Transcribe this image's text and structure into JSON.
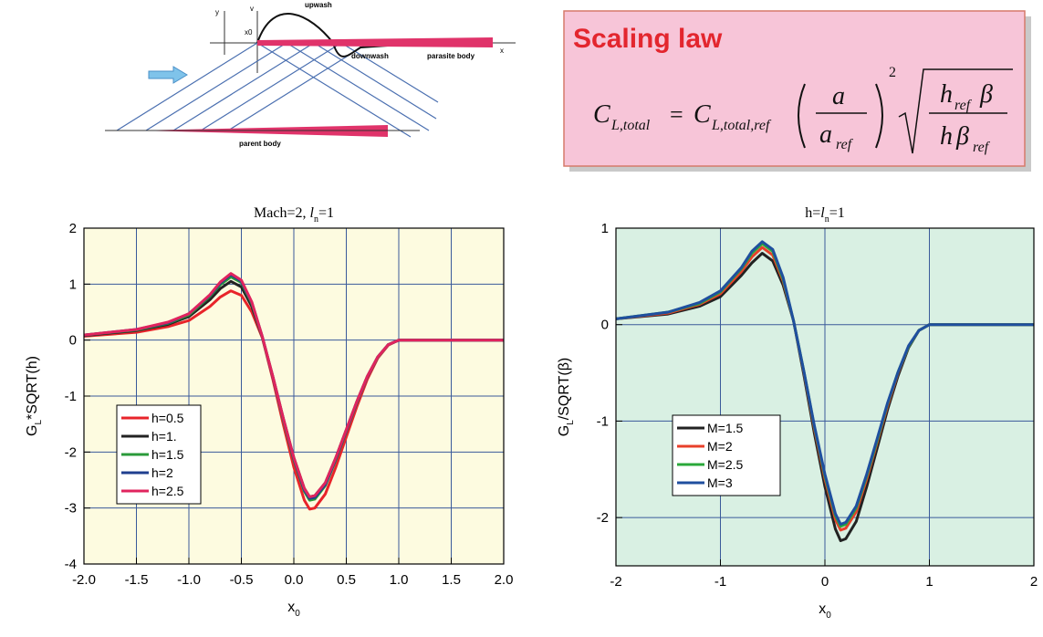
{
  "diagram": {
    "y_axis": "y",
    "v_axis": "v",
    "x0": "x0",
    "upwash": "upwash",
    "downwash": "downwash",
    "parasite_body": "parasite body",
    "x_axis": "x",
    "parent_body": "parent body"
  },
  "scaling_law": {
    "title": "Scaling law",
    "formula": [
      "C",
      "L,total",
      "=",
      "C",
      "L,total,ref",
      "a",
      "a",
      "ref",
      "2",
      "h",
      "ref",
      "β",
      "h",
      "β",
      "ref"
    ]
  },
  "chart_data": [
    {
      "type": "line",
      "title": [
        "Mach=2, ",
        "l",
        "n",
        "=1"
      ],
      "x_label": [
        "x",
        "0"
      ],
      "y_label": [
        "G",
        "L",
        "*SQRT(h)"
      ],
      "x": [
        -2,
        -1.5,
        -1.2,
        -1,
        -0.8,
        -0.7,
        -0.6,
        -0.5,
        -0.4,
        -0.3,
        -0.2,
        -0.1,
        0,
        0.1,
        0.15,
        0.2,
        0.3,
        0.4,
        0.5,
        0.6,
        0.7,
        0.8,
        0.9,
        1,
        1.5,
        2
      ],
      "series": [
        {
          "name": "h=0.5",
          "color": "#e8242a",
          "values": [
            0.07,
            0.14,
            0.24,
            0.35,
            0.6,
            0.77,
            0.88,
            0.8,
            0.5,
            0.04,
            -0.7,
            -1.51,
            -2.27,
            -2.86,
            -3.02,
            -3.0,
            -2.75,
            -2.27,
            -1.73,
            -1.19,
            -0.7,
            -0.32,
            -0.09,
            0,
            0,
            0
          ]
        },
        {
          "name": "h=1.",
          "color": "#222222",
          "values": [
            0.08,
            0.17,
            0.28,
            0.42,
            0.72,
            0.92,
            1.05,
            0.95,
            0.6,
            0.05,
            -0.65,
            -1.4,
            -2.1,
            -2.65,
            -2.8,
            -2.78,
            -2.55,
            -2.1,
            -1.6,
            -1.1,
            -0.65,
            -0.3,
            -0.08,
            0,
            0,
            0
          ]
        },
        {
          "name": "h=1.5",
          "color": "#2a9a3a",
          "values": [
            0.09,
            0.18,
            0.3,
            0.45,
            0.78,
            0.99,
            1.13,
            1.03,
            0.65,
            0.05,
            -0.66,
            -1.43,
            -2.14,
            -2.7,
            -2.86,
            -2.84,
            -2.6,
            -2.14,
            -1.63,
            -1.12,
            -0.66,
            -0.31,
            -0.08,
            0,
            0,
            0
          ]
        },
        {
          "name": "h=2",
          "color": "#1f3f8f",
          "values": [
            0.09,
            0.19,
            0.31,
            0.47,
            0.8,
            1.02,
            1.17,
            1.05,
            0.67,
            0.06,
            -0.66,
            -1.41,
            -2.12,
            -2.68,
            -2.83,
            -2.81,
            -2.58,
            -2.12,
            -1.62,
            -1.11,
            -0.66,
            -0.3,
            -0.08,
            0,
            0,
            0
          ]
        },
        {
          "name": "h=2.5",
          "color": "#e0245e",
          "values": [
            0.09,
            0.19,
            0.32,
            0.47,
            0.81,
            1.04,
            1.19,
            1.07,
            0.68,
            0.06,
            -0.65,
            -1.4,
            -2.1,
            -2.65,
            -2.8,
            -2.78,
            -2.55,
            -2.1,
            -1.6,
            -1.1,
            -0.65,
            -0.3,
            -0.08,
            0,
            0,
            0
          ]
        }
      ],
      "xlim": [
        -2,
        2
      ],
      "xticks": [
        {
          "value": -2,
          "label": "-2.0"
        },
        {
          "value": -1.5,
          "label": "-1.5"
        },
        {
          "value": -1,
          "label": "-1.0"
        },
        {
          "value": -0.5,
          "label": "-0.5"
        },
        {
          "value": 0,
          "label": "0.0"
        },
        {
          "value": 0.5,
          "label": "0.5"
        },
        {
          "value": 1,
          "label": "1.0"
        },
        {
          "value": 1.5,
          "label": "1.5"
        },
        {
          "value": 2,
          "label": "2.0"
        }
      ],
      "ylim": [
        -4,
        2
      ],
      "yticks": [
        -4,
        -3,
        -2,
        -1,
        0,
        1,
        2
      ],
      "grid": true,
      "legend": "center left",
      "background": "#fdfbe0"
    },
    {
      "type": "line",
      "title": [
        "h=",
        "l",
        "n",
        "=1"
      ],
      "x_label": [
        "x",
        "0"
      ],
      "y_label": [
        "G",
        "L",
        "/SQRT(β)"
      ],
      "x": [
        -2,
        -1.5,
        -1.2,
        -1,
        -0.8,
        -0.7,
        -0.6,
        -0.5,
        -0.4,
        -0.3,
        -0.2,
        -0.1,
        0,
        0.1,
        0.15,
        0.2,
        0.3,
        0.4,
        0.5,
        0.6,
        0.7,
        0.8,
        0.9,
        1,
        1.5,
        2
      ],
      "series": [
        {
          "name": "M=1.5",
          "color": "#222222",
          "values": [
            0.06,
            0.11,
            0.19,
            0.29,
            0.51,
            0.64,
            0.74,
            0.66,
            0.41,
            0.04,
            -0.53,
            -1.13,
            -1.68,
            -2.12,
            -2.24,
            -2.22,
            -2.04,
            -1.68,
            -1.28,
            -0.88,
            -0.53,
            -0.24,
            -0.06,
            0,
            0,
            0
          ]
        },
        {
          "name": "M=2",
          "color": "#e8402a",
          "values": [
            0.06,
            0.12,
            0.21,
            0.32,
            0.55,
            0.7,
            0.8,
            0.72,
            0.45,
            0.04,
            -0.5,
            -1.08,
            -1.6,
            -2.02,
            -2.13,
            -2.11,
            -1.94,
            -1.6,
            -1.22,
            -0.84,
            -0.5,
            -0.23,
            -0.06,
            0,
            0,
            0
          ]
        },
        {
          "name": "M=2.5",
          "color": "#2aa83a",
          "values": [
            0.06,
            0.13,
            0.22,
            0.34,
            0.58,
            0.74,
            0.84,
            0.76,
            0.47,
            0.04,
            -0.49,
            -1.06,
            -1.57,
            -1.98,
            -2.09,
            -2.07,
            -1.9,
            -1.57,
            -1.2,
            -0.82,
            -0.49,
            -0.23,
            -0.06,
            0,
            0,
            0
          ]
        },
        {
          "name": "M=3",
          "color": "#1f4f9f",
          "values": [
            0.06,
            0.13,
            0.23,
            0.35,
            0.59,
            0.76,
            0.86,
            0.78,
            0.49,
            0.04,
            -0.49,
            -1.05,
            -1.55,
            -1.96,
            -2.07,
            -2.05,
            -1.88,
            -1.55,
            -1.18,
            -0.81,
            -0.49,
            -0.22,
            -0.06,
            0,
            0,
            0
          ]
        }
      ],
      "xlim": [
        -2,
        2
      ],
      "xticks": [
        -2,
        -1,
        0,
        1,
        2
      ],
      "ylim": [
        -2.5,
        1
      ],
      "yticks": [
        -2,
        -1,
        0,
        1
      ],
      "grid": true,
      "legend": "center left",
      "background": "#d9f0e3"
    }
  ]
}
